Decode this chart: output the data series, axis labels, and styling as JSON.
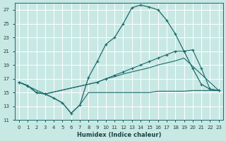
{
  "xlabel": "Humidex (Indice chaleur)",
  "bg_color": "#c8e8e4",
  "grid_color": "#ffffff",
  "line_color": "#1a6b6b",
  "xlim": [
    -0.5,
    23.5
  ],
  "ylim": [
    11,
    28
  ],
  "yticks": [
    11,
    13,
    15,
    17,
    19,
    21,
    23,
    25,
    27
  ],
  "xticks": [
    0,
    1,
    2,
    3,
    4,
    5,
    6,
    7,
    8,
    9,
    10,
    11,
    12,
    13,
    14,
    15,
    16,
    17,
    18,
    19,
    20,
    21,
    22,
    23
  ],
  "curve1_x": [
    0,
    1,
    2,
    3,
    4,
    5,
    6,
    7,
    8,
    9,
    10,
    11,
    12,
    13,
    14,
    15,
    16,
    17,
    18,
    19,
    20,
    21,
    22,
    23
  ],
  "curve1_y": [
    16.5,
    16.0,
    15.0,
    14.8,
    14.2,
    13.5,
    12.0,
    13.2,
    17.2,
    19.5,
    22.0,
    23.0,
    25.0,
    27.3,
    27.7,
    27.4,
    27.0,
    25.5,
    23.5,
    21.0,
    18.5,
    16.2,
    15.5,
    15.3
  ],
  "curve2_x": [
    0,
    1,
    2,
    3,
    9,
    10,
    11,
    12,
    13,
    14,
    15,
    16,
    17,
    18,
    19,
    20,
    21,
    22,
    23
  ],
  "curve2_y": [
    16.5,
    16.0,
    15.0,
    14.8,
    16.5,
    17.0,
    17.5,
    18.0,
    18.5,
    19.0,
    19.5,
    20.0,
    20.5,
    21.0,
    21.0,
    21.2,
    18.5,
    15.5,
    15.3
  ],
  "curve3_x": [
    0,
    3,
    9,
    10,
    11,
    12,
    13,
    14,
    15,
    16,
    17,
    18,
    19,
    23
  ],
  "curve3_y": [
    16.5,
    14.8,
    16.5,
    17.0,
    17.3,
    17.7,
    18.0,
    18.3,
    18.6,
    19.0,
    19.3,
    19.6,
    20.0,
    15.3
  ],
  "curve4_x": [
    0,
    1,
    2,
    3,
    4,
    5,
    6,
    7,
    8,
    9,
    10,
    11,
    12,
    13,
    14,
    15,
    16,
    17,
    18,
    19,
    20,
    21,
    22,
    23
  ],
  "curve4_y": [
    16.5,
    16.0,
    15.0,
    14.8,
    14.2,
    13.5,
    12.0,
    13.2,
    15.0,
    15.0,
    15.0,
    15.0,
    15.0,
    15.0,
    15.0,
    15.0,
    15.2,
    15.2,
    15.2,
    15.2,
    15.3,
    15.3,
    15.3,
    15.3
  ]
}
